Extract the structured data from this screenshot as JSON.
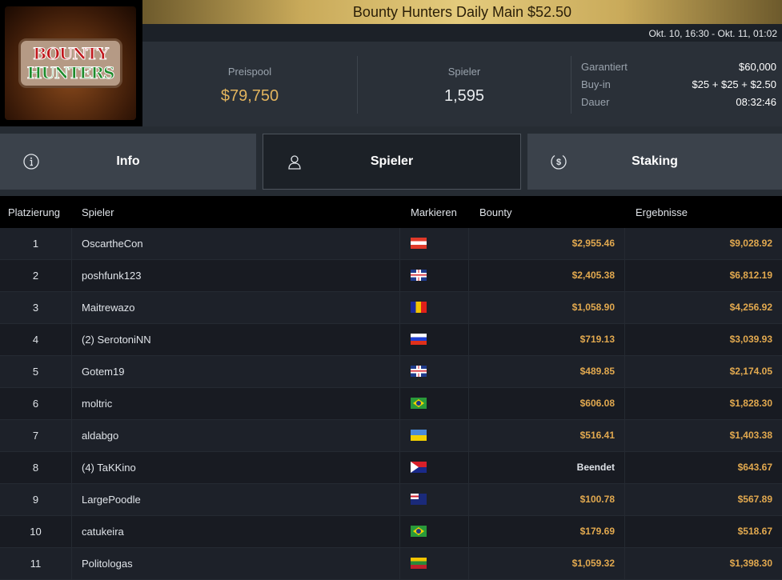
{
  "logo": {
    "line1": "BOUNTY",
    "line2": "HUNTERS"
  },
  "title": "Bounty Hunters Daily Main $52.50",
  "date_range": "Okt. 10, 16:30 - Okt. 11, 01:02",
  "stats": {
    "prizepool": {
      "label": "Preispool",
      "value": "$79,750"
    },
    "players": {
      "label": "Spieler",
      "value": "1,595"
    },
    "details": [
      {
        "label": "Garantiert",
        "value": "$60,000"
      },
      {
        "label": "Buy-in",
        "value": "$25 + $25 + $2.50"
      },
      {
        "label": "Dauer",
        "value": "08:32:46"
      }
    ]
  },
  "tabs": [
    {
      "label": "Info",
      "icon": "info-icon"
    },
    {
      "label": "Spieler",
      "icon": "user-icon",
      "active": true
    },
    {
      "label": "Staking",
      "icon": "dollar-coin-icon"
    }
  ],
  "table": {
    "headers": [
      "Platzierung",
      "Spieler",
      "Markieren",
      "Bounty",
      "Ergebnisse"
    ],
    "rows": [
      {
        "rank": "1",
        "name": "OscartheCon",
        "flag": "at",
        "bounty": "$2,955.46",
        "result": "$9,028.92"
      },
      {
        "rank": "2",
        "name": "poshfunk123",
        "flag": "gb",
        "bounty": "$2,405.38",
        "result": "$6,812.19"
      },
      {
        "rank": "3",
        "name": "Maitrewazo",
        "flag": "ad",
        "bounty": "$1,058.90",
        "result": "$4,256.92"
      },
      {
        "rank": "4",
        "name": "(2) SerotoniNN",
        "flag": "ru",
        "bounty": "$719.13",
        "result": "$3,039.93"
      },
      {
        "rank": "5",
        "name": "Gotem19",
        "flag": "gb",
        "bounty": "$489.85",
        "result": "$2,174.05"
      },
      {
        "rank": "6",
        "name": "moltric",
        "flag": "br",
        "bounty": "$606.08",
        "result": "$1,828.30"
      },
      {
        "rank": "7",
        "name": "aldabgo",
        "flag": "ua",
        "bounty": "$516.41",
        "result": "$1,403.38"
      },
      {
        "rank": "8",
        "name": "(4) TaKKino",
        "flag": "sx",
        "bounty": "Beendet",
        "result": "$643.67"
      },
      {
        "rank": "9",
        "name": "LargePoodle",
        "flag": "nz",
        "bounty": "$100.78",
        "result": "$567.89"
      },
      {
        "rank": "10",
        "name": "catukeira",
        "flag": "br",
        "bounty": "$179.69",
        "result": "$518.67"
      },
      {
        "rank": "11",
        "name": "Politologas",
        "flag": "lt",
        "bounty": "$1,059.32",
        "result": "$1,398.30"
      }
    ]
  }
}
